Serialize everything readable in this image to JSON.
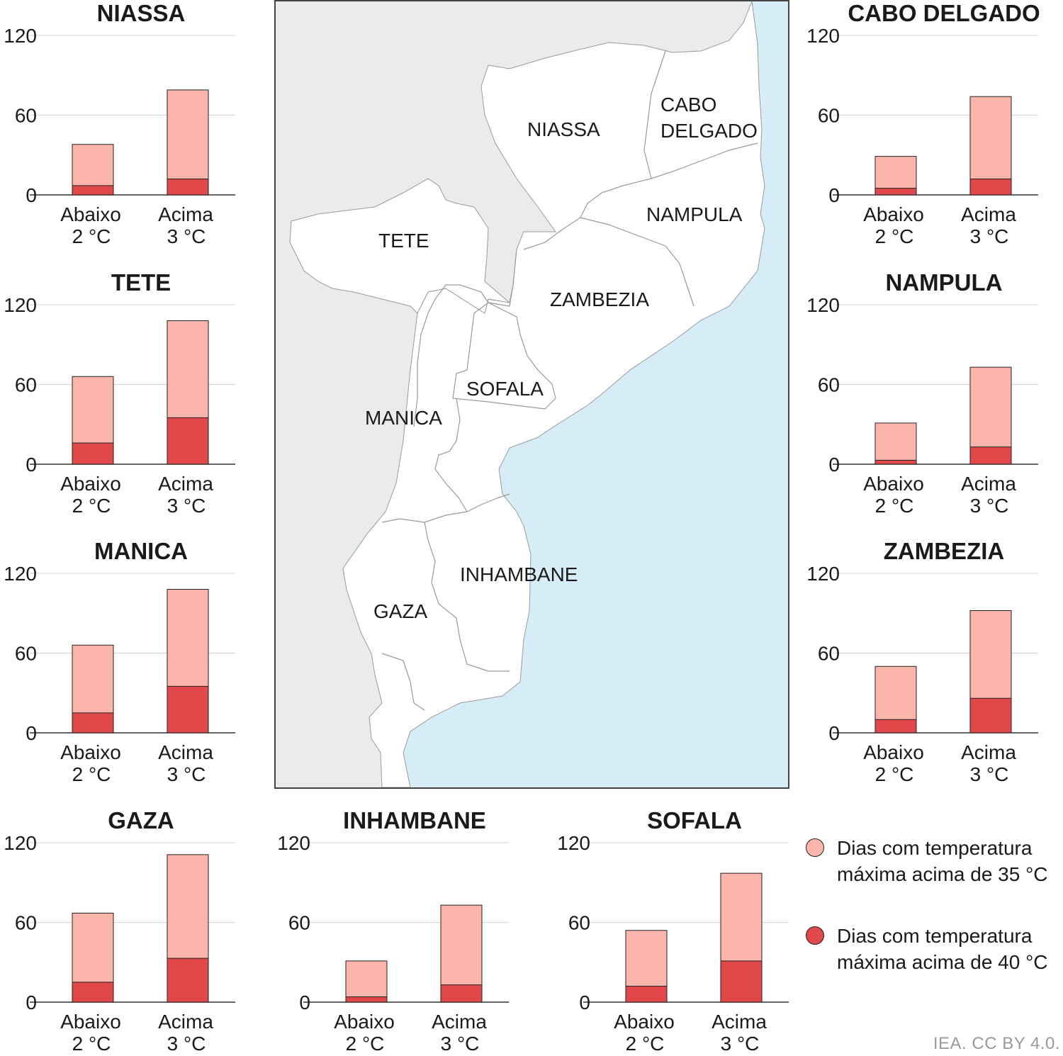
{
  "colors": {
    "light": "#fbb5aa",
    "dark": "#e0484a",
    "grid": "#d9d9d9",
    "sea": "#d6ecf6",
    "land_other": "#ebebeb",
    "land_moz": "#ffffff"
  },
  "legend": {
    "light_label": "Dias com temperatura máxima acima de 35 °C",
    "dark_label": "Dias com temperatura máxima acima de 40 °C"
  },
  "source": "IEA. CC BY 4.0.",
  "map_labels": {
    "niassa": "NIASSA",
    "cabo_1": "CABO",
    "cabo_2": "DELGADO",
    "nampula": "NAMPULA",
    "tete": "TETE",
    "zambezia": "ZAMBEZIA",
    "sofala": "SOFALA",
    "manica": "MANICA",
    "inhambane": "INHAMBANE",
    "gaza": "GAZA"
  },
  "chart_data": [
    {
      "type": "bar",
      "title": "NIASSA",
      "categories": [
        [
          "Abaixo",
          "2 °C"
        ],
        [
          "Acima",
          "3 °C"
        ]
      ],
      "ylim": [
        0,
        120
      ],
      "yticks": [
        "0",
        "60",
        "120"
      ],
      "series": [
        {
          "values": [
            7,
            12
          ]
        },
        {
          "values": [
            38,
            79
          ]
        }
      ]
    },
    {
      "type": "bar",
      "title": "CABO DELGADO",
      "categories": [
        [
          "Abaixo",
          "2 °C"
        ],
        [
          "Acima",
          "3 °C"
        ]
      ],
      "ylim": [
        0,
        120
      ],
      "yticks": [
        "0",
        "60",
        "120"
      ],
      "series": [
        {
          "values": [
            5,
            12
          ]
        },
        {
          "values": [
            29,
            74
          ]
        }
      ]
    },
    {
      "type": "bar",
      "title": "TETE",
      "categories": [
        [
          "Abaixo",
          "2 °C"
        ],
        [
          "Acima",
          "3 °C"
        ]
      ],
      "ylim": [
        0,
        120
      ],
      "yticks": [
        "0",
        "60",
        "120"
      ],
      "series": [
        {
          "values": [
            16,
            35
          ]
        },
        {
          "values": [
            66,
            108
          ]
        }
      ]
    },
    {
      "type": "bar",
      "title": "NAMPULA",
      "categories": [
        [
          "Abaixo",
          "2 °C"
        ],
        [
          "Acima",
          "3 °C"
        ]
      ],
      "ylim": [
        0,
        120
      ],
      "yticks": [
        "0",
        "60",
        "120"
      ],
      "series": [
        {
          "values": [
            3,
            13
          ]
        },
        {
          "values": [
            31,
            73
          ]
        }
      ]
    },
    {
      "type": "bar",
      "title": "MANICA",
      "categories": [
        [
          "Abaixo",
          "2 °C"
        ],
        [
          "Acima",
          "3 °C"
        ]
      ],
      "ylim": [
        0,
        120
      ],
      "yticks": [
        "0",
        "60",
        "120"
      ],
      "series": [
        {
          "values": [
            15,
            35
          ]
        },
        {
          "values": [
            66,
            108
          ]
        }
      ]
    },
    {
      "type": "bar",
      "title": "ZAMBEZIA",
      "categories": [
        [
          "Abaixo",
          "2 °C"
        ],
        [
          "Acima",
          "3 °C"
        ]
      ],
      "ylim": [
        0,
        120
      ],
      "yticks": [
        "0",
        "60",
        "120"
      ],
      "series": [
        {
          "values": [
            10,
            26
          ]
        },
        {
          "values": [
            50,
            92
          ]
        }
      ]
    },
    {
      "type": "bar",
      "title": "GAZA",
      "categories": [
        [
          "Abaixo",
          "2 °C"
        ],
        [
          "Acima",
          "3 °C"
        ]
      ],
      "ylim": [
        0,
        120
      ],
      "yticks": [
        "0",
        "60",
        "120"
      ],
      "series": [
        {
          "values": [
            15,
            33
          ]
        },
        {
          "values": [
            67,
            111
          ]
        }
      ]
    },
    {
      "type": "bar",
      "title": "INHAMBANE",
      "categories": [
        [
          "Abaixo",
          "2 °C"
        ],
        [
          "Acima",
          "3 °C"
        ]
      ],
      "ylim": [
        0,
        120
      ],
      "yticks": [
        "0",
        "60",
        "120"
      ],
      "series": [
        {
          "values": [
            4,
            13
          ]
        },
        {
          "values": [
            31,
            73
          ]
        }
      ]
    },
    {
      "type": "bar",
      "title": "SOFALA",
      "categories": [
        [
          "Abaixo",
          "2 °C"
        ],
        [
          "Acima",
          "3 °C"
        ]
      ],
      "ylim": [
        0,
        120
      ],
      "yticks": [
        "0",
        "60",
        "120"
      ],
      "series": [
        {
          "values": [
            12,
            31
          ]
        },
        {
          "values": [
            54,
            97
          ]
        }
      ]
    }
  ]
}
